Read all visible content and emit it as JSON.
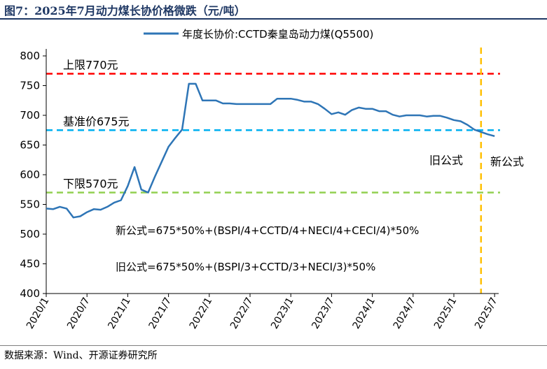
{
  "figure": {
    "title": "图7：2025年7月动力煤长协价格微跌（元/吨）",
    "source": "数据来源：Wind、开源证券研究所"
  },
  "chart_data": {
    "type": "line",
    "title": "",
    "xlabel": "",
    "ylabel": "",
    "ylim": [
      400,
      800
    ],
    "yticks": [
      400,
      450,
      500,
      550,
      600,
      650,
      700,
      750,
      800
    ],
    "xlim": [
      "2020-01",
      "2025-07"
    ],
    "xticks": [
      "2020/1",
      "2020/7",
      "2021/1",
      "2021/7",
      "2022/1",
      "2022/7",
      "2023/1",
      "2023/7",
      "2024/1",
      "2024/7",
      "2025/1",
      "2025/7"
    ],
    "grid": false,
    "legend_position": "top",
    "series": [
      {
        "name": "年度长协价:CCTD秦皇岛动力煤(Q5500)",
        "color": "#2e75b6",
        "points": [
          [
            "2020-01",
            543
          ],
          [
            "2020-02",
            542
          ],
          [
            "2020-03",
            546
          ],
          [
            "2020-04",
            543
          ],
          [
            "2020-05",
            528
          ],
          [
            "2020-06",
            530
          ],
          [
            "2020-07",
            537
          ],
          [
            "2020-08",
            542
          ],
          [
            "2020-09",
            541
          ],
          [
            "2020-10",
            546
          ],
          [
            "2020-11",
            553
          ],
          [
            "2020-12",
            557
          ],
          [
            "2021-01",
            581
          ],
          [
            "2021-02",
            613
          ],
          [
            "2021-03",
            575
          ],
          [
            "2021-04",
            570
          ],
          [
            "2021-05",
            597
          ],
          [
            "2021-06",
            622
          ],
          [
            "2021-07",
            647
          ],
          [
            "2021-08",
            662
          ],
          [
            "2021-09",
            676
          ],
          [
            "2021-10",
            753
          ],
          [
            "2021-11",
            753
          ],
          [
            "2021-12",
            725
          ],
          [
            "2022-01",
            725
          ],
          [
            "2022-02",
            725
          ],
          [
            "2022-03",
            720
          ],
          [
            "2022-04",
            720
          ],
          [
            "2022-05",
            719
          ],
          [
            "2022-06",
            719
          ],
          [
            "2022-07",
            719
          ],
          [
            "2022-08",
            719
          ],
          [
            "2022-09",
            719
          ],
          [
            "2022-10",
            719
          ],
          [
            "2022-11",
            728
          ],
          [
            "2022-12",
            728
          ],
          [
            "2023-01",
            728
          ],
          [
            "2023-02",
            726
          ],
          [
            "2023-03",
            723
          ],
          [
            "2023-04",
            723
          ],
          [
            "2023-05",
            719
          ],
          [
            "2023-06",
            711
          ],
          [
            "2023-07",
            702
          ],
          [
            "2023-08",
            705
          ],
          [
            "2023-09",
            701
          ],
          [
            "2023-10",
            709
          ],
          [
            "2023-11",
            713
          ],
          [
            "2023-12",
            711
          ],
          [
            "2024-01",
            711
          ],
          [
            "2024-02",
            707
          ],
          [
            "2024-03",
            707
          ],
          [
            "2024-04",
            701
          ],
          [
            "2024-05",
            698
          ],
          [
            "2024-06",
            700
          ],
          [
            "2024-07",
            700
          ],
          [
            "2024-08",
            700
          ],
          [
            "2024-09",
            698
          ],
          [
            "2024-10",
            699
          ],
          [
            "2024-11",
            699
          ],
          [
            "2024-12",
            696
          ],
          [
            "2025-01",
            692
          ],
          [
            "2025-02",
            690
          ],
          [
            "2025-03",
            684
          ],
          [
            "2025-04",
            676
          ],
          [
            "2025-05",
            672
          ],
          [
            "2025-06",
            668
          ],
          [
            "2025-07",
            665
          ]
        ]
      }
    ],
    "reference_lines": [
      {
        "label": "上限770元",
        "value": 770,
        "color": "#ff0000"
      },
      {
        "label": "基准价675元",
        "value": 675,
        "color": "#00b0f0"
      },
      {
        "label": "下限570元",
        "value": 570,
        "color": "#92d050"
      }
    ],
    "vertical_marker": {
      "x": "2025-05",
      "color": "#ffc000"
    },
    "annotations": {
      "old_region": "旧公式",
      "new_region": "新公式",
      "new_formula": "新公式=675*50%+(BSPI/4+CCTD/4+NECI/4+CECI/4)*50%",
      "old_formula": "旧公式=675*50%+(BSPI/3+CCTD/3+NECI/3)*50%"
    }
  }
}
